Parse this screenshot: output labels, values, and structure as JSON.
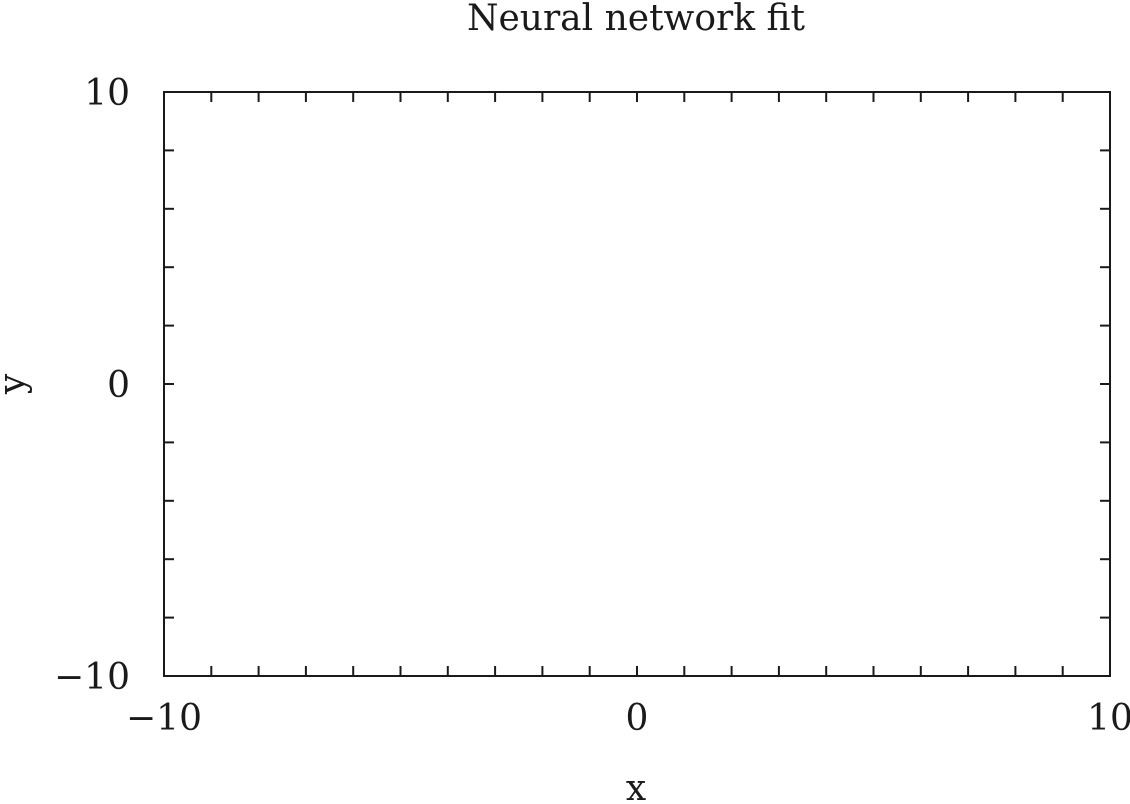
{
  "chart_data": {
    "type": "line",
    "title": "Neural network fit",
    "xlabel": "x",
    "ylabel": "y",
    "xlim": [
      -10,
      10
    ],
    "ylim": [
      -10,
      10
    ],
    "x_major_ticks": [
      -10,
      0,
      10
    ],
    "x_tick_labels": [
      "−10",
      "0",
      "10"
    ],
    "x_minor_step": 1,
    "y_major_ticks": [
      -10,
      0,
      10
    ],
    "y_tick_labels": [
      "−10",
      "0",
      "10"
    ],
    "y_minor_step": 2,
    "grid": false,
    "series": []
  }
}
